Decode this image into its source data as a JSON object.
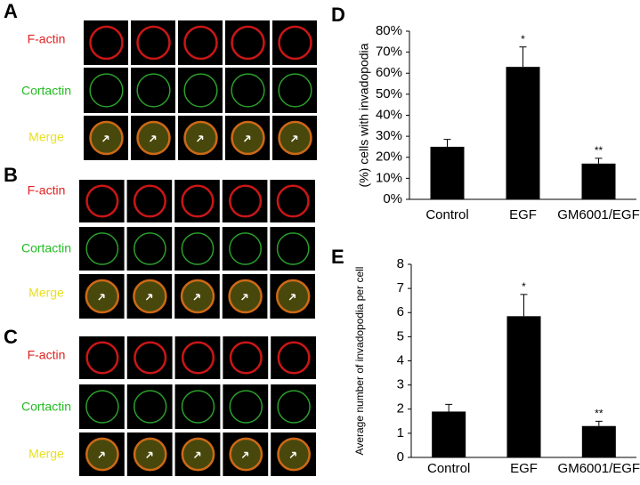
{
  "panels": [
    {
      "label": "A",
      "rows": [
        "F-actin",
        "Cortactin",
        "Merge"
      ]
    },
    {
      "label": "B",
      "rows": [
        "F-actin",
        "Cortactin",
        "Merge"
      ]
    },
    {
      "label": "C",
      "rows": [
        "F-actin",
        "Cortactin",
        "Merge"
      ]
    }
  ],
  "chart_data": [
    {
      "type": "bar",
      "label": "D",
      "y_label": "(%) cells with invadopodia",
      "categories": [
        "Control",
        "EGF",
        "GM6001/EGF"
      ],
      "values": [
        25,
        63,
        17
      ],
      "errors": [
        3.5,
        9.5,
        2.5
      ],
      "significance": [
        null,
        "*",
        "**"
      ],
      "color": "#000000",
      "ylim": [
        0,
        80
      ],
      "yticks": [
        {
          "value": 0,
          "label": "0%"
        },
        {
          "value": 10,
          "label": "10%"
        },
        {
          "value": 20,
          "label": "20%"
        },
        {
          "value": 30,
          "label": "30%"
        },
        {
          "value": 40,
          "label": "40%"
        },
        {
          "value": 50,
          "label": "50%"
        },
        {
          "value": 60,
          "label": "60%"
        },
        {
          "value": 70,
          "label": "70%"
        },
        {
          "value": 80,
          "label": "80%"
        }
      ]
    },
    {
      "type": "bar",
      "label": "E",
      "y_label": "Average number of invadopodia per cell",
      "categories": [
        "Control",
        "EGF",
        "GM6001/EGF"
      ],
      "values": [
        1.9,
        5.85,
        1.3
      ],
      "errors": [
        0.3,
        0.9,
        0.2
      ],
      "significance": [
        null,
        "*",
        "**"
      ],
      "color": "#000000",
      "ylim": [
        0,
        8
      ],
      "yticks": [
        0,
        1,
        2,
        3,
        4,
        5,
        6,
        7,
        8
      ]
    }
  ]
}
